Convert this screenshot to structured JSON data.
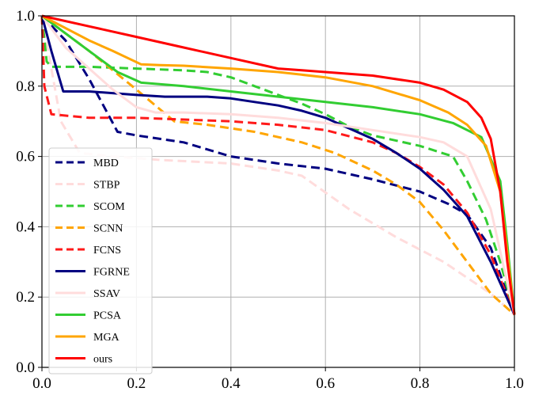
{
  "chart_data": {
    "type": "line",
    "title": "",
    "xlabel": "",
    "ylabel": "",
    "xlim": [
      0.0,
      1.0
    ],
    "ylim": [
      0.0,
      1.0
    ],
    "grid": true,
    "legend_position": "lower-left",
    "xticks": [
      "0.0",
      "0.2",
      "0.4",
      "0.6",
      "0.8",
      "1.0"
    ],
    "yticks": [
      "0.0",
      "0.2",
      "0.4",
      "0.6",
      "0.8",
      "1.0"
    ],
    "series": [
      {
        "name": "MBD",
        "color": "#000080",
        "dashed": true,
        "x": [
          0.0,
          0.05,
          0.1,
          0.16,
          0.2,
          0.3,
          0.4,
          0.5,
          0.6,
          0.7,
          0.8,
          0.86,
          0.9,
          0.95,
          1.0
        ],
        "y": [
          1.0,
          0.93,
          0.82,
          0.67,
          0.66,
          0.64,
          0.6,
          0.58,
          0.565,
          0.535,
          0.5,
          0.465,
          0.435,
          0.34,
          0.15
        ]
      },
      {
        "name": "STBP",
        "color": "#ffdcdc",
        "dashed": true,
        "x": [
          0.0,
          0.02,
          0.04,
          0.08,
          0.15,
          0.25,
          0.4,
          0.5,
          0.55,
          0.65,
          0.75,
          0.85,
          0.95,
          1.0
        ],
        "y": [
          1.0,
          0.85,
          0.7,
          0.61,
          0.6,
          0.59,
          0.58,
          0.56,
          0.545,
          0.45,
          0.37,
          0.3,
          0.21,
          0.15
        ]
      },
      {
        "name": "SCOM",
        "color": "#32cd32",
        "dashed": true,
        "x": [
          0.0,
          0.01,
          0.02,
          0.1,
          0.2,
          0.3,
          0.35,
          0.4,
          0.45,
          0.5,
          0.55,
          0.6,
          0.65,
          0.7,
          0.8,
          0.87,
          0.9,
          0.94,
          0.97,
          1.0
        ],
        "y": [
          1.0,
          0.87,
          0.855,
          0.855,
          0.85,
          0.845,
          0.84,
          0.825,
          0.8,
          0.775,
          0.75,
          0.72,
          0.685,
          0.66,
          0.63,
          0.6,
          0.53,
          0.42,
          0.3,
          0.15
        ]
      },
      {
        "name": "SCNN",
        "color": "#ffa500",
        "dashed": true,
        "x": [
          0.0,
          0.1,
          0.2,
          0.28,
          0.35,
          0.45,
          0.55,
          0.62,
          0.7,
          0.75,
          0.8,
          0.85,
          0.9,
          0.95,
          1.0
        ],
        "y": [
          1.0,
          0.9,
          0.79,
          0.7,
          0.69,
          0.67,
          0.64,
          0.61,
          0.56,
          0.52,
          0.47,
          0.39,
          0.3,
          0.21,
          0.15
        ]
      },
      {
        "name": "FCNS",
        "color": "#ff1a1a",
        "dashed": true,
        "x": [
          0.0,
          0.005,
          0.02,
          0.1,
          0.2,
          0.3,
          0.4,
          0.5,
          0.6,
          0.7,
          0.75,
          0.8,
          0.85,
          0.9,
          0.95,
          1.0
        ],
        "y": [
          1.0,
          0.8,
          0.72,
          0.71,
          0.71,
          0.705,
          0.7,
          0.69,
          0.675,
          0.64,
          0.61,
          0.57,
          0.52,
          0.44,
          0.32,
          0.15
        ]
      },
      {
        "name": "FGRNE",
        "color": "#000080",
        "dashed": false,
        "x": [
          0.0,
          0.02,
          0.045,
          0.1,
          0.2,
          0.26,
          0.3,
          0.35,
          0.4,
          0.45,
          0.5,
          0.55,
          0.6,
          0.65,
          0.7,
          0.75,
          0.8,
          0.85,
          0.9,
          0.95,
          1.0
        ],
        "y": [
          1.0,
          0.9,
          0.785,
          0.785,
          0.775,
          0.77,
          0.77,
          0.77,
          0.765,
          0.755,
          0.745,
          0.73,
          0.71,
          0.68,
          0.65,
          0.61,
          0.565,
          0.505,
          0.43,
          0.3,
          0.15
        ]
      },
      {
        "name": "SSAV",
        "color": "#ffdcdc",
        "dashed": false,
        "x": [
          0.0,
          0.05,
          0.1,
          0.15,
          0.2,
          0.24,
          0.3,
          0.4,
          0.5,
          0.6,
          0.7,
          0.8,
          0.85,
          0.9,
          0.95,
          1.0
        ],
        "y": [
          1.0,
          0.91,
          0.85,
          0.79,
          0.74,
          0.725,
          0.725,
          0.72,
          0.71,
          0.695,
          0.675,
          0.655,
          0.64,
          0.6,
          0.45,
          0.15
        ]
      },
      {
        "name": "PCSA",
        "color": "#32cd32",
        "dashed": false,
        "x": [
          0.0,
          0.1,
          0.16,
          0.21,
          0.3,
          0.4,
          0.5,
          0.6,
          0.7,
          0.8,
          0.87,
          0.93,
          0.97,
          0.985,
          1.0
        ],
        "y": [
          1.0,
          0.9,
          0.84,
          0.81,
          0.8,
          0.785,
          0.77,
          0.755,
          0.74,
          0.72,
          0.695,
          0.655,
          0.53,
          0.35,
          0.15
        ]
      },
      {
        "name": "MGA",
        "color": "#ffa500",
        "dashed": false,
        "x": [
          0.0,
          0.1,
          0.15,
          0.21,
          0.25,
          0.3,
          0.4,
          0.5,
          0.6,
          0.7,
          0.8,
          0.86,
          0.9,
          0.94,
          0.97,
          1.0
        ],
        "y": [
          1.0,
          0.93,
          0.9,
          0.862,
          0.86,
          0.858,
          0.85,
          0.84,
          0.825,
          0.8,
          0.76,
          0.725,
          0.69,
          0.63,
          0.5,
          0.15
        ]
      },
      {
        "name": "ours",
        "color": "#ff0000",
        "dashed": false,
        "x": [
          0.0,
          0.1,
          0.2,
          0.3,
          0.4,
          0.5,
          0.55,
          0.6,
          0.7,
          0.8,
          0.85,
          0.9,
          0.93,
          0.95,
          0.97,
          0.985,
          1.0
        ],
        "y": [
          1.0,
          0.97,
          0.94,
          0.91,
          0.88,
          0.85,
          0.845,
          0.84,
          0.83,
          0.81,
          0.79,
          0.755,
          0.71,
          0.65,
          0.5,
          0.3,
          0.15
        ]
      }
    ]
  }
}
